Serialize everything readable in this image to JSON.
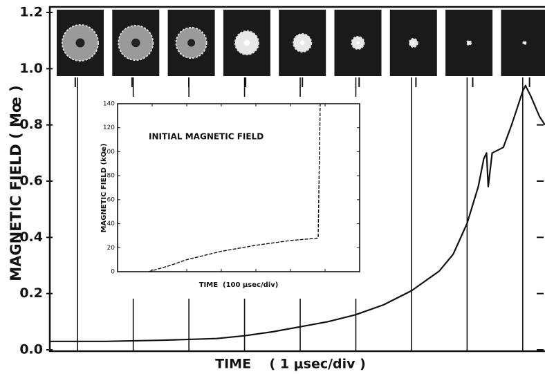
{
  "chart_data": [
    {
      "type": "line",
      "y_label": "MAGNETIC FIELD  ( Mœ )",
      "x_label": "TIME    ( 1 μsec/div )",
      "xlim": [
        0,
        8.9
      ],
      "ylim": [
        0,
        1.2
      ],
      "yticks": [
        {
          "value": 0,
          "label": "0.0"
        },
        0.2,
        0.4,
        0.6,
        0.8,
        {
          "value": 1,
          "label": "1.0"
        },
        1.2
      ],
      "frame_times": [
        0.5,
        1.5,
        2.5,
        3.5,
        4.5,
        5.5,
        6.5,
        7.5,
        8.5
      ],
      "series": [
        {
          "color": "#111111",
          "x": [
            0,
            1,
            2,
            3,
            3.5,
            4,
            4.5,
            5,
            5.5,
            6,
            6.5,
            7,
            7.25,
            7.5,
            7.7,
            7.8,
            7.85,
            7.88,
            7.95,
            8.05,
            8.15,
            8.3,
            8.4,
            8.5,
            8.55,
            8.65,
            8.8,
            8.9
          ],
          "values": [
            0.03,
            0.03,
            0.034,
            0.04,
            0.05,
            0.064,
            0.082,
            0.1,
            0.125,
            0.16,
            0.21,
            0.28,
            0.34,
            0.45,
            0.58,
            0.68,
            0.7,
            0.58,
            0.7,
            0.71,
            0.72,
            0.8,
            0.86,
            0.92,
            0.94,
            0.9,
            0.83,
            0.8
          ]
        }
      ]
    },
    {
      "type": "line",
      "title": "INITIAL MAGNETIC FIELD",
      "y_label": "MAGNETIC FIELD (kOe)",
      "x_label": "TIME  (100 μsec/div)",
      "xlim": [
        0,
        7
      ],
      "ylim": [
        0,
        140
      ],
      "yticks": [
        0,
        20,
        40,
        60,
        80,
        100,
        120,
        140
      ],
      "series": [
        {
          "color": "#111111",
          "x": [
            0.9,
            1.5,
            2,
            3,
            4,
            5,
            5.8,
            5.86
          ],
          "values": [
            0,
            5,
            10,
            17,
            22,
            26,
            28,
            140
          ]
        }
      ]
    }
  ]
}
